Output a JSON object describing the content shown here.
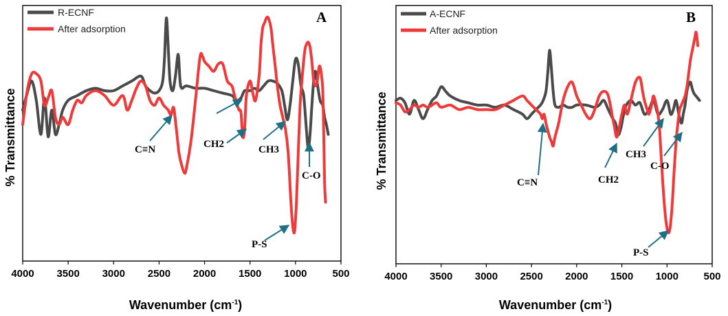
{
  "chart_data": [
    {
      "type": "line",
      "panel_label": "A",
      "xlabel": "Wavenumber (cm",
      "xlabel_sup": "-1",
      "xlabel_end": ")",
      "ylabel": "% Transmittance",
      "xlim": [
        4000,
        500
      ],
      "xticks": [
        4000,
        3500,
        3000,
        2500,
        2000,
        1500,
        1000,
        500
      ],
      "ylim": [
        0,
        100
      ],
      "grid": false,
      "legend": "top-left",
      "series": [
        {
          "name": "R-ECNF",
          "color": "#4a4a4a",
          "x": [
            4000,
            3950,
            3900,
            3850,
            3800,
            3760,
            3720,
            3680,
            3640,
            3600,
            3560,
            3500,
            3400,
            3300,
            3200,
            3100,
            3000,
            2900,
            2800,
            2700,
            2650,
            2600,
            2550,
            2500,
            2460,
            2440,
            2420,
            2400,
            2380,
            2350,
            2320,
            2290,
            2270,
            2250,
            2200,
            2100,
            2000,
            1900,
            1800,
            1700,
            1650,
            1600,
            1560,
            1500,
            1450,
            1400,
            1350,
            1300,
            1250,
            1200,
            1150,
            1120,
            1090,
            1060,
            1030,
            1000,
            970,
            940,
            910,
            880,
            860,
            840,
            820,
            800,
            780,
            760,
            730,
            700,
            680,
            660,
            640
          ],
          "y": [
            58,
            65,
            70,
            62,
            48,
            63,
            47,
            58,
            48,
            52,
            58,
            62,
            64,
            66,
            67,
            66,
            66,
            68,
            70,
            72,
            68,
            66,
            65,
            66,
            70,
            80,
            96,
            84,
            70,
            66,
            72,
            81,
            70,
            67,
            68,
            67,
            67,
            66,
            65,
            64,
            62,
            63,
            66,
            66,
            67,
            66,
            68,
            70,
            70,
            69,
            66,
            60,
            54,
            60,
            70,
            79,
            77,
            68,
            64,
            50,
            42,
            48,
            60,
            70,
            74,
            69,
            62,
            60,
            55,
            52,
            48
          ]
        },
        {
          "name": "After adsorption",
          "color": "#ee3a3a",
          "x": [
            4000,
            3950,
            3900,
            3850,
            3800,
            3760,
            3720,
            3680,
            3640,
            3600,
            3560,
            3500,
            3450,
            3400,
            3350,
            3300,
            3200,
            3100,
            3000,
            2900,
            2850,
            2800,
            2750,
            2700,
            2650,
            2600,
            2550,
            2500,
            2450,
            2400,
            2370,
            2340,
            2310,
            2280,
            2250,
            2220,
            2200,
            2150,
            2100,
            2050,
            2020,
            2000,
            1950,
            1900,
            1850,
            1800,
            1750,
            1700,
            1670,
            1640,
            1620,
            1600,
            1580,
            1560,
            1540,
            1500,
            1470,
            1440,
            1400,
            1380,
            1360,
            1340,
            1320,
            1300,
            1270,
            1250,
            1220,
            1200,
            1170,
            1140,
            1110,
            1080,
            1050,
            1030,
            1010,
            990,
            970,
            950,
            930,
            900,
            880,
            860,
            840,
            820,
            800,
            780,
            760,
            740,
            720,
            700,
            690,
            680,
            670
          ],
          "y": [
            52,
            66,
            73,
            73,
            70,
            60,
            63,
            66,
            55,
            52,
            55,
            52,
            58,
            62,
            61,
            64,
            66,
            64,
            60,
            64,
            58,
            62,
            67,
            70,
            68,
            62,
            60,
            63,
            60,
            58,
            56,
            59,
            50,
            40,
            35,
            32,
            34,
            45,
            62,
            80,
            80,
            78,
            76,
            74,
            77,
            77,
            70,
            68,
            64,
            60,
            58,
            57,
            47,
            50,
            64,
            70,
            65,
            62,
            72,
            85,
            92,
            94,
            96,
            96,
            92,
            85,
            75,
            68,
            60,
            55,
            50,
            40,
            20,
            10,
            8,
            20,
            40,
            60,
            70,
            82,
            85,
            86,
            84,
            78,
            70,
            68,
            70,
            76,
            74,
            66,
            48,
            28,
            20
          ]
        }
      ],
      "annotations": [
        "C≡N",
        "CH2",
        "CH3",
        "C-O",
        "P-S"
      ]
    },
    {
      "type": "line",
      "panel_label": "B",
      "xlabel": "Wavenumber (cm",
      "xlabel_sup": "-1",
      "xlabel_end": ")",
      "ylabel": "% Transmittance",
      "xlim": [
        4000,
        500
      ],
      "xticks": [
        4000,
        3500,
        3000,
        2500,
        2000,
        1500,
        1000,
        500
      ],
      "ylim": [
        0,
        100
      ],
      "grid": false,
      "legend": "top-left",
      "series": [
        {
          "name": "A-ECNF",
          "color": "#4a4a4a",
          "x": [
            4000,
            3950,
            3900,
            3850,
            3800,
            3750,
            3700,
            3650,
            3600,
            3550,
            3500,
            3450,
            3400,
            3300,
            3200,
            3100,
            3000,
            2900,
            2800,
            2700,
            2600,
            2550,
            2500,
            2450,
            2400,
            2370,
            2340,
            2320,
            2300,
            2280,
            2260,
            2240,
            2200,
            2150,
            2100,
            2050,
            2000,
            1900,
            1800,
            1750,
            1700,
            1650,
            1600,
            1570,
            1540,
            1510,
            1480,
            1450,
            1400,
            1350,
            1300,
            1250,
            1200,
            1150,
            1100,
            1050,
            1000,
            960,
            930,
            900,
            870,
            840,
            820,
            800,
            780,
            760,
            740,
            720,
            700,
            680,
            660,
            640
          ],
          "y": [
            68,
            69,
            67,
            62,
            68,
            64,
            60,
            64,
            68,
            70,
            74,
            72,
            70,
            68,
            67,
            66,
            66,
            65,
            66,
            64,
            62,
            60,
            62,
            64,
            66,
            68,
            72,
            80,
            90,
            82,
            72,
            66,
            65,
            66,
            65,
            65,
            66,
            66,
            65,
            66,
            68,
            64,
            60,
            58,
            53,
            56,
            62,
            66,
            68,
            66,
            67,
            62,
            64,
            68,
            62,
            64,
            68,
            62,
            64,
            68,
            62,
            58,
            62,
            66,
            72,
            75,
            76,
            73,
            71,
            70,
            69,
            68
          ]
        },
        {
          "name": "After adsorption",
          "color": "#ee3a3a",
          "x": [
            4000,
            3950,
            3900,
            3850,
            3800,
            3750,
            3700,
            3650,
            3600,
            3550,
            3500,
            3400,
            3300,
            3200,
            3100,
            3000,
            2900,
            2800,
            2700,
            2600,
            2550,
            2500,
            2450,
            2400,
            2380,
            2360,
            2340,
            2320,
            2300,
            2280,
            2260,
            2240,
            2200,
            2150,
            2100,
            2050,
            2000,
            1950,
            1900,
            1850,
            1800,
            1750,
            1700,
            1650,
            1600,
            1580,
            1560,
            1540,
            1500,
            1470,
            1440,
            1400,
            1350,
            1300,
            1270,
            1250,
            1220,
            1200,
            1170,
            1150,
            1120,
            1100,
            1080,
            1060,
            1040,
            1020,
            1000,
            980,
            960,
            940,
            920,
            900,
            880,
            860,
            840,
            820,
            800,
            780,
            760,
            740,
            720,
            700,
            690,
            680,
            670,
            660
          ],
          "y": [
            67,
            66,
            63,
            64,
            66,
            65,
            66,
            65,
            66,
            67,
            65,
            66,
            64,
            65,
            64,
            64,
            64,
            66,
            68,
            70,
            68,
            66,
            64,
            62,
            60,
            62,
            58,
            55,
            52,
            50,
            48,
            52,
            58,
            68,
            74,
            76,
            70,
            66,
            62,
            60,
            64,
            70,
            72,
            70,
            60,
            56,
            52,
            54,
            62,
            66,
            62,
            68,
            76,
            78,
            72,
            68,
            64,
            62,
            66,
            70,
            66,
            62,
            54,
            40,
            28,
            18,
            12,
            10,
            14,
            24,
            38,
            50,
            58,
            64,
            66,
            68,
            70,
            74,
            80,
            86,
            90,
            94,
            96,
            98,
            96,
            92
          ]
        }
      ],
      "annotations": [
        "C≡N",
        "CH2",
        "CH3",
        "C-O",
        "P-S"
      ]
    }
  ]
}
